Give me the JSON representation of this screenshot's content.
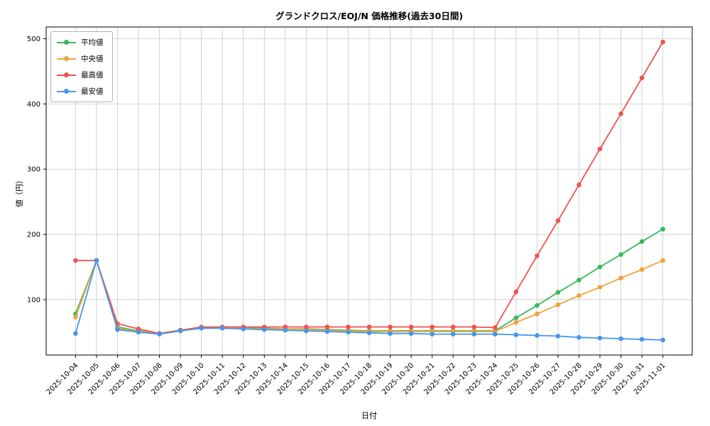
{
  "chart_data": {
    "type": "line",
    "title": "グランドクロス/EOJ/N 価格推移(過去30日間)",
    "xlabel": "日付",
    "ylabel": "値（円）",
    "x": [
      "2025-10-04",
      "2025-10-05",
      "2025-10-06",
      "2025-10-07",
      "2025-10-08",
      "2025-10-09",
      "2025-10-10",
      "2025-10-11",
      "2025-10-12",
      "2025-10-13",
      "2025-10-14",
      "2025-10-15",
      "2025-10-16",
      "2025-10-17",
      "2025-10-18",
      "2025-10-19",
      "2025-10-20",
      "2025-10-21",
      "2025-10-22",
      "2025-10-23",
      "2025-10-24",
      "2025-10-25",
      "2025-10-26",
      "2025-10-27",
      "2025-10-28",
      "2025-10-29",
      "2025-10-30",
      "2025-10-31",
      "2025-11-01"
    ],
    "series": [
      {
        "name": "平均値",
        "color": "#3bb75a",
        "values": [
          78,
          160,
          58,
          52,
          48,
          53,
          57,
          57,
          57,
          56,
          55,
          55,
          54,
          53,
          52,
          52,
          52,
          52,
          52,
          52,
          52,
          72,
          91,
          111,
          130,
          150,
          169,
          189,
          208
        ]
      },
      {
        "name": "中央値",
        "color": "#f0a33a",
        "values": [
          73,
          160,
          56,
          51,
          48,
          53,
          57,
          57,
          56,
          55,
          55,
          54,
          53,
          52,
          51,
          51,
          51,
          51,
          51,
          51,
          51,
          65,
          78,
          92,
          106,
          119,
          133,
          146,
          160
        ]
      },
      {
        "name": "最高値",
        "color": "#ef5350",
        "values": [
          160,
          160,
          63,
          55,
          48,
          53,
          58,
          58,
          58,
          58,
          58,
          58,
          58,
          58,
          58,
          58,
          58,
          58,
          58,
          58,
          57,
          112,
          167,
          221,
          276,
          331,
          385,
          440,
          495
        ]
      },
      {
        "name": "最安値",
        "color": "#4596ec",
        "values": [
          48,
          160,
          54,
          50,
          47,
          52,
          56,
          56,
          55,
          54,
          53,
          52,
          51,
          50,
          49,
          48,
          48,
          47,
          47,
          47,
          47,
          46,
          45,
          44,
          42,
          41,
          40,
          39,
          38
        ]
      }
    ],
    "ylim": [
      15,
      518
    ],
    "yticks": [
      100,
      200,
      300,
      400,
      500
    ],
    "grid": true,
    "legend_position": "upper left",
    "colors": {
      "grid": "#c8c8c8",
      "spine": "#000000",
      "background": "#ffffff"
    }
  }
}
